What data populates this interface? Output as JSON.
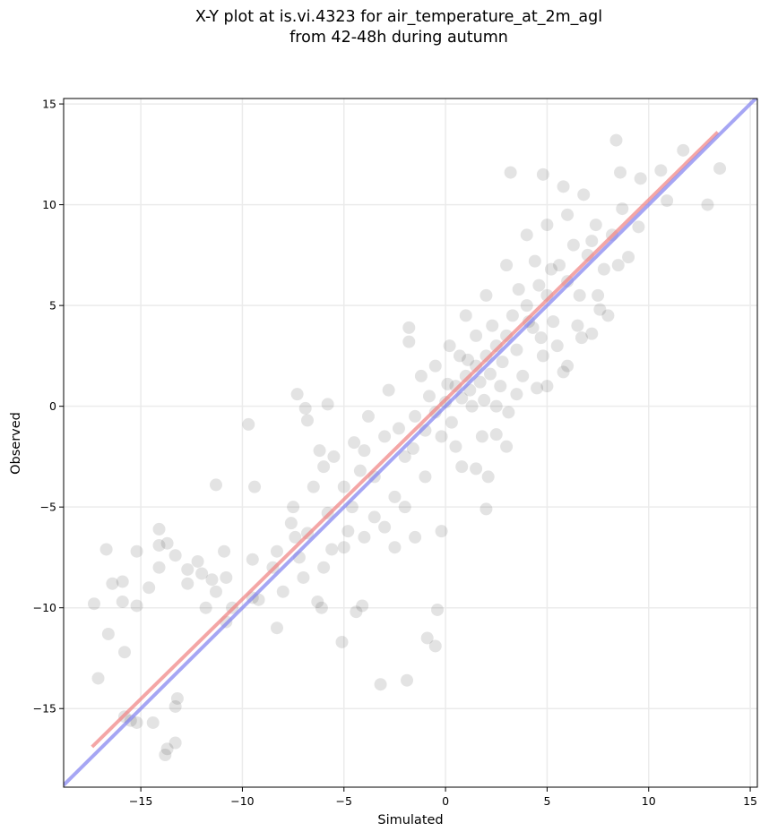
{
  "chart_data": {
    "type": "scatter",
    "title": [
      "X-Y plot at is.vi.4323 for air_temperature_at_2m_agl",
      "from 42-48h during autumn"
    ],
    "x_label": "Simulated",
    "y_label": "Observed",
    "xlim": [
      -18.8,
      15.35
    ],
    "ylim": [
      -18.9,
      15.27
    ],
    "xticks": [
      {
        "value": -15,
        "label": "−15"
      },
      {
        "value": -10,
        "label": "−10"
      },
      {
        "value": -5,
        "label": "−5"
      },
      0,
      5,
      10,
      15
    ],
    "yticks": [
      {
        "value": -15,
        "label": "−15"
      },
      {
        "value": -10,
        "label": "−10"
      },
      {
        "value": -5,
        "label": "−5"
      },
      0,
      5,
      10,
      15
    ],
    "grid": true,
    "series": [
      {
        "color": "#000000",
        "x": [
          -17.3,
          -16.7,
          -16.6,
          -16.4,
          -15.9,
          -15.9,
          -15.8,
          -17.1,
          -15.2,
          -15.2,
          -14.6,
          -14.1,
          -14.1,
          -14.1,
          -13.7,
          -13.3,
          -12.7,
          -12.7,
          -12.2,
          -12.0,
          -11.8,
          -11.5,
          -11.3,
          -11.3,
          -10.9,
          -10.8,
          -10.8,
          -9.7,
          -9.4,
          -9.5,
          -9.2,
          -8.3,
          -8.3,
          -7.6,
          -7.4,
          -7.3,
          -6.8,
          -6.9,
          -6.3,
          -5.8,
          -6.1,
          -5.6,
          -5.1,
          -4.8,
          -4.4,
          -4.1,
          -3.2,
          -1.9,
          -0.9,
          -0.5,
          -0.4,
          -0.2,
          -1.8,
          -1.8,
          -13.8,
          -13.7,
          -13.3,
          -13.3,
          -13.2,
          -14.4,
          -15.5,
          -15.2,
          -15.8,
          3.2,
          4.8,
          5.8,
          8.4,
          11.7,
          13.5,
          12.9,
          10.9,
          8.6,
          10.6,
          9.6,
          4.7,
          6.0,
          5.8,
          5.0,
          4.5,
          3.5,
          8.0,
          7.6,
          7.2,
          6.7,
          2.1,
          2.0,
          1.5,
          3.0,
          2.5,
          -6,
          -5.5,
          -5,
          -4.5,
          -4,
          -3.5,
          -3,
          -2.5,
          -2,
          -1.5,
          -1,
          -0.5,
          0,
          0.3,
          0.5,
          0.8,
          1,
          1.2,
          1.5,
          1.7,
          2,
          2.2,
          2.5,
          2.8,
          3,
          3.3,
          3.5,
          4,
          4.3,
          4.6,
          5,
          5.3,
          5.6,
          6,
          6.3,
          6.6,
          7,
          7.4,
          7.8,
          8.2,
          8.7,
          9,
          9.5,
          1,
          0.2,
          -0.5,
          2,
          3,
          4,
          5,
          6,
          0.5,
          -1,
          -2,
          -3,
          -4,
          -5,
          -6,
          -7,
          -7.5,
          -6.5,
          -3.5,
          -2.5,
          -1.5,
          -3.8,
          -2.8,
          -1.2,
          0.8,
          1.8,
          2.5,
          3.8,
          4.8,
          5.5,
          6.5,
          7.5,
          8.5,
          1.5,
          2.3,
          0.7,
          -0.2,
          1.3,
          2.7,
          3.6,
          4.4,
          5.2,
          -4.2,
          -5.8,
          -6.8,
          -8.5,
          -9.5,
          -10.5,
          -0.8,
          0.1,
          1.1,
          1.9,
          -1.6,
          -2.3,
          3.1,
          4.1,
          6.8,
          7.2,
          -7.2,
          -8,
          -6.2,
          -4.6
        ],
        "values": [
          -9.8,
          -7.1,
          -11.3,
          -8.8,
          -8.7,
          -9.7,
          -12.2,
          -13.5,
          -7.2,
          -9.9,
          -9.0,
          -6.1,
          -6.9,
          -8.0,
          -6.8,
          -7.4,
          -8.1,
          -8.8,
          -7.7,
          -8.3,
          -10.0,
          -8.6,
          -3.9,
          -9.2,
          -7.2,
          -8.5,
          -10.7,
          -0.9,
          -4.0,
          -7.6,
          -9.6,
          -11.0,
          -7.2,
          -5.8,
          -6.5,
          0.6,
          -0.7,
          -0.1,
          -9.7,
          0.1,
          -10.0,
          -7.1,
          -11.7,
          -6.2,
          -10.2,
          -9.9,
          -13.8,
          -13.6,
          -11.5,
          -11.9,
          -10.1,
          -6.2,
          3.2,
          3.9,
          -17.3,
          -17.0,
          -16.7,
          -14.9,
          -14.5,
          -15.7,
          -15.6,
          -15.7,
          -15.4,
          11.6,
          11.5,
          10.9,
          13.2,
          12.7,
          11.8,
          10.0,
          10.2,
          11.6,
          11.7,
          11.3,
          3.4,
          2.0,
          1.7,
          1.0,
          0.9,
          0.6,
          4.5,
          4.8,
          3.6,
          3.4,
          -3.5,
          -5.1,
          -3.1,
          -2.0,
          -1.4,
          -3,
          -2.5,
          -4,
          -1.8,
          -2.2,
          -3.5,
          -1.5,
          -4.5,
          -2.5,
          -0.5,
          -1.2,
          -0.3,
          0.2,
          -0.8,
          1,
          0.4,
          1.5,
          0.8,
          2,
          1.2,
          2.5,
          1.6,
          3,
          2.2,
          3.5,
          4.5,
          2.8,
          5,
          3.9,
          6,
          5.5,
          4.2,
          7,
          6.2,
          8,
          5.5,
          7.5,
          9,
          6.8,
          8.5,
          9.8,
          7.4,
          8.9,
          4.5,
          3,
          2,
          5.5,
          7,
          8.5,
          9,
          9.5,
          -2,
          -3.5,
          -5,
          -6,
          -6.5,
          -7,
          -8,
          -8.5,
          -5,
          -4,
          -5.5,
          -7,
          -6.5,
          -0.5,
          0.8,
          1.5,
          -3,
          -1.5,
          0,
          1.5,
          2.5,
          3,
          4,
          5.5,
          7,
          3.5,
          4,
          2.5,
          -1.5,
          0,
          1,
          5.8,
          7.2,
          6.8,
          -3.2,
          -5.3,
          -6.3,
          -8,
          -9.5,
          -10,
          0.5,
          1.1,
          2.3,
          0.3,
          -2.1,
          -1.1,
          -0.3,
          4.2,
          10.5,
          8.2,
          -7.5,
          -9.2,
          -2.2,
          -5
        ]
      }
    ],
    "lines": [
      {
        "color": "#f08080",
        "x": [
          -17.4,
          13.4
        ],
        "y": [
          -16.9,
          13.6
        ]
      },
      {
        "color": "#8080f0",
        "x": [
          -18.8,
          15.35
        ],
        "y": [
          -18.8,
          15.35
        ]
      }
    ]
  }
}
